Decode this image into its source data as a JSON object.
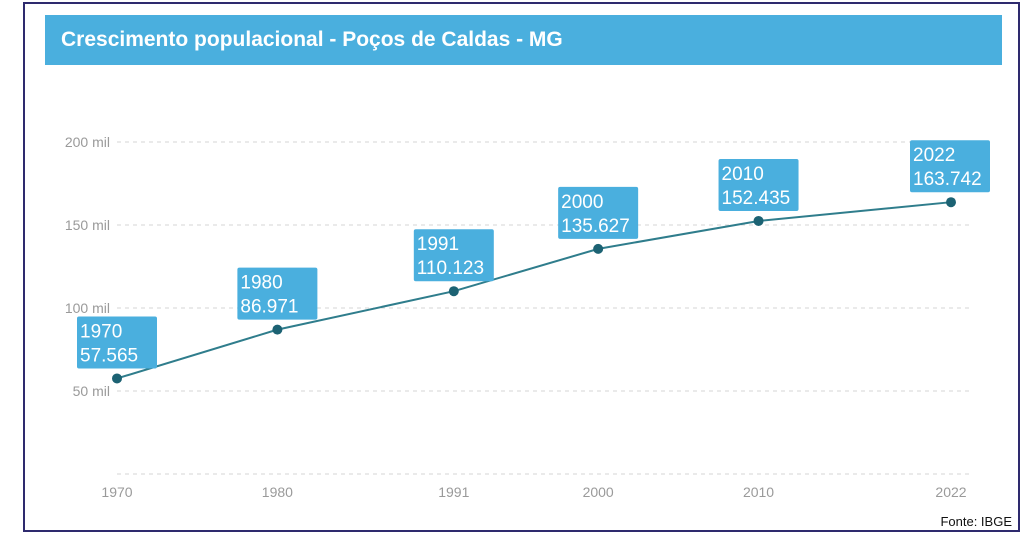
{
  "title": "Crescimento populacional - Poços de Caldas - MG",
  "source": "Fonte: IBGE",
  "colors": {
    "title_bg": "#4aafde",
    "line": "#2f7d8c",
    "marker": "#1c6273",
    "label_bg": "#4aafde",
    "frame": "#2e2a6e"
  },
  "chart_data": {
    "type": "line",
    "title": "Crescimento populacional - Poços de Caldas - MG",
    "xlabel": "",
    "ylabel": "",
    "categories": [
      "1970",
      "1980",
      "1991",
      "2000",
      "2010",
      "2022"
    ],
    "x": [
      1970,
      1980,
      1991,
      2000,
      2010,
      2022
    ],
    "values": [
      57565,
      86971,
      110123,
      135627,
      152435,
      163742
    ],
    "value_labels": [
      "57.565",
      "86.971",
      "110.123",
      "135.627",
      "152.435",
      "163.742"
    ],
    "yticks": [
      50000,
      100000,
      150000,
      200000
    ],
    "ytick_labels": [
      "50 mil",
      "100 mil",
      "150 mil",
      "200 mil"
    ],
    "ylim": [
      0,
      200000
    ],
    "grid": true,
    "legend": "none"
  }
}
